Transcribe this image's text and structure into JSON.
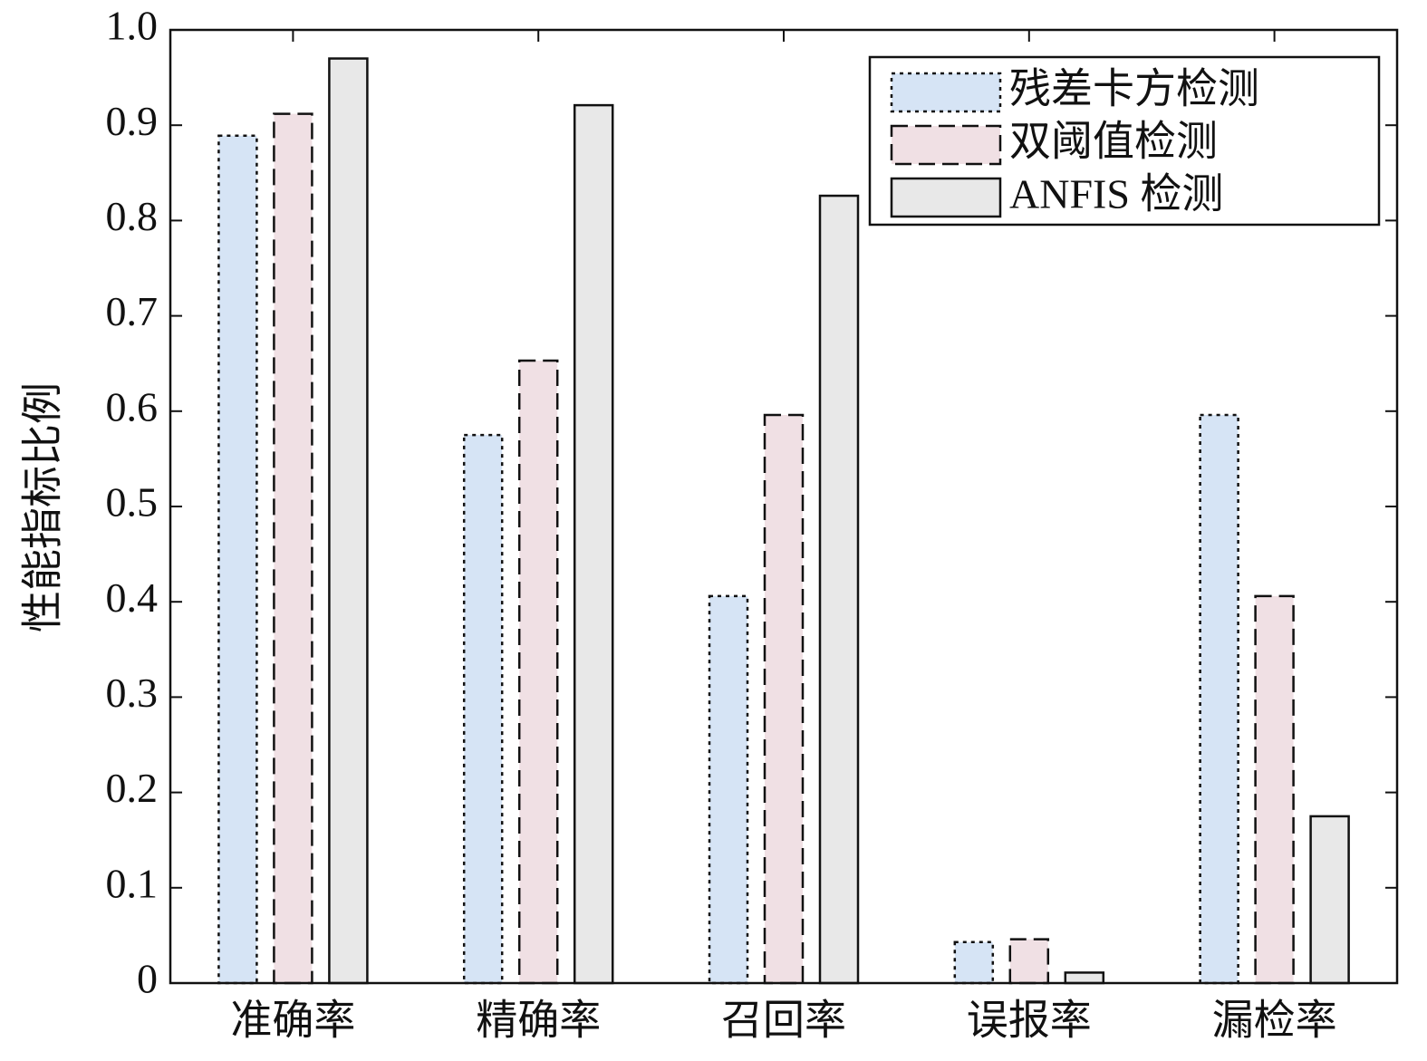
{
  "chart_data": {
    "type": "bar",
    "y_label": "性能指标比例",
    "categories": [
      "准确率",
      "精确率",
      "召回率",
      "误报率",
      "漏检率"
    ],
    "series": [
      {
        "name": "残差卡方检测",
        "color": "#d6e4f5",
        "linestyle": "dotted",
        "values": [
          0.889,
          0.575,
          0.406,
          0.043,
          0.596
        ]
      },
      {
        "name": "双阈值检测",
        "color": "#f0e0e4",
        "linestyle": "dashed",
        "values": [
          0.912,
          0.653,
          0.596,
          0.046,
          0.406
        ]
      },
      {
        "name": "ANFIS 检测",
        "color": "#e8e8e8",
        "linestyle": "solid",
        "values": [
          0.97,
          0.921,
          0.826,
          0.011,
          0.175
        ]
      }
    ],
    "ylim": [
      0,
      1
    ],
    "yticks": [
      0,
      0.1,
      0.2,
      0.3,
      0.4,
      0.5,
      0.6,
      0.7,
      0.8,
      0.9,
      {
        "value": 1,
        "label": "1.0"
      }
    ],
    "legend": "upper right"
  }
}
